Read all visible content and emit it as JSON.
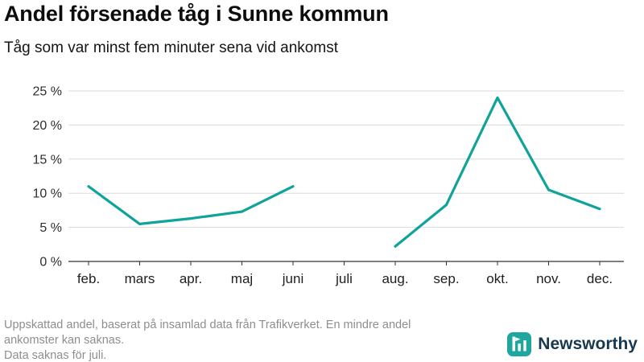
{
  "header": {
    "title": "Andel försenade tåg i Sunne kommun",
    "subtitle": "Tåg som var minst fem minuter sena vid ankomst"
  },
  "chart_data": {
    "type": "line",
    "title": "Andel försenade tåg i Sunne kommun",
    "subtitle": "Tåg som var minst fem minuter sena vid ankomst",
    "categories": [
      "feb.",
      "mars",
      "apr.",
      "maj",
      "juni",
      "juli",
      "aug.",
      "sep.",
      "okt.",
      "nov.",
      "dec."
    ],
    "series": [
      {
        "name": "Andel försenade tåg",
        "values": [
          11,
          5.5,
          6.3,
          7.3,
          11,
          null,
          2.2,
          8.3,
          24,
          10.5,
          7.7
        ]
      }
    ],
    "ylim": [
      0,
      25
    ],
    "yticks": [
      0,
      5,
      10,
      15,
      20,
      25
    ],
    "ytick_suffix": " %",
    "xlabel": "",
    "ylabel": "",
    "grid": "horizontal",
    "legend": "none",
    "line_color": "#0fa39a",
    "gap_note": "Data saknas för juli."
  },
  "footer": {
    "note_line1": "Uppskattad andel, baserat på insamlad data från Trafikverket. En mindre andel",
    "note_line2": "ankomster kan saknas.",
    "note_line3": "Data saknas för juli.",
    "brand": "Newsworthy",
    "brand_color": "#17394f",
    "logo_color": "#1fa69e"
  }
}
